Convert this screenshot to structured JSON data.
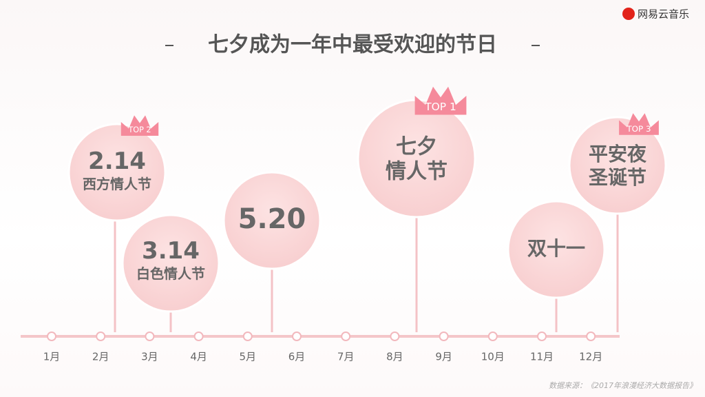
{
  "logo": "网易云音乐",
  "title": "七夕成为一年中最受欢迎的节日",
  "months": [
    "1月",
    "2月",
    "3月",
    "4月",
    "5月",
    "6月",
    "7月",
    "8月",
    "9月",
    "10月",
    "11月",
    "12月"
  ],
  "bubbles": [
    {
      "lines": [
        "2.14",
        "西方情人节"
      ],
      "badge": "TOP 2"
    },
    {
      "lines": [
        "3.14",
        "白色情人节"
      ]
    },
    {
      "lines": [
        "5.20"
      ]
    },
    {
      "lines": [
        "七夕",
        "情人节"
      ],
      "badge": "TOP 1"
    },
    {
      "lines": [
        "双十一"
      ]
    },
    {
      "lines": [
        "平安夜",
        "圣诞节"
      ],
      "badge": "TOP 3"
    }
  ],
  "source": "数据来源：《2017年浪漫经济大数据报告》"
}
